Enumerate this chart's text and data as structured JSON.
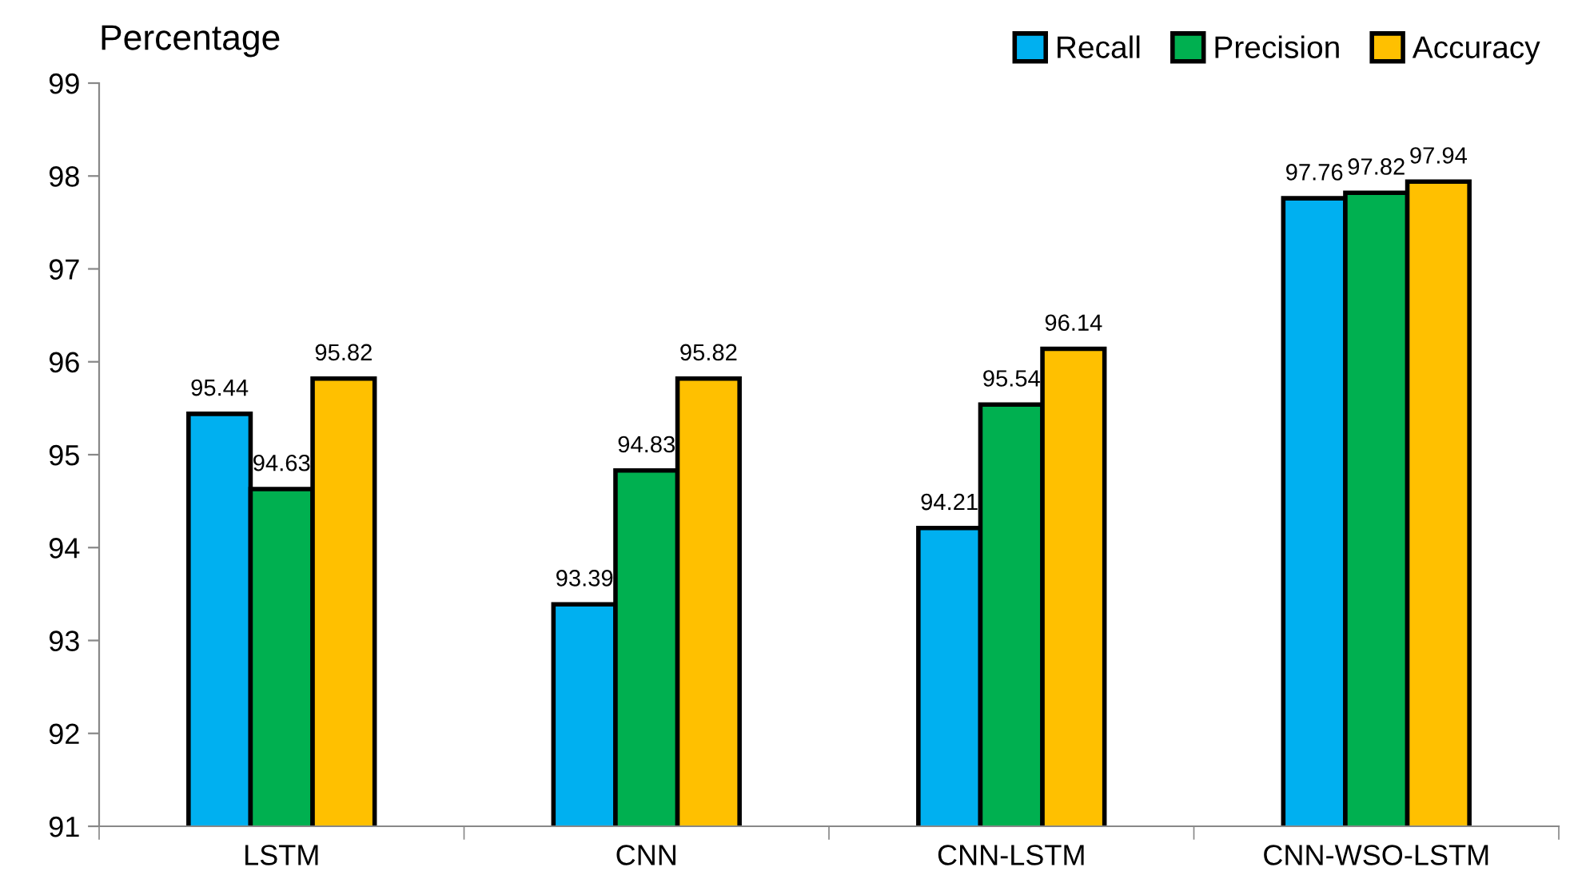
{
  "chart_data": {
    "type": "bar",
    "ylabel": "Percentage",
    "categories": [
      "LSTM",
      "CNN",
      "CNN-LSTM",
      "CNN-WSO-LSTM"
    ],
    "series": [
      {
        "name": "Recall",
        "color": "#00b0f0",
        "values": [
          95.44,
          93.39,
          94.21,
          97.76
        ]
      },
      {
        "name": "Precision",
        "color": "#00b050",
        "values": [
          94.63,
          94.83,
          95.54,
          97.82
        ]
      },
      {
        "name": "Accuracy",
        "color": "#ffc000",
        "values": [
          95.82,
          95.82,
          96.14,
          97.94
        ]
      }
    ],
    "ylim": [
      91,
      99
    ],
    "yticks": [
      91,
      92,
      93,
      94,
      95,
      96,
      97,
      98,
      99
    ],
    "data_labels": true,
    "legend": "top right",
    "grid": false
  }
}
